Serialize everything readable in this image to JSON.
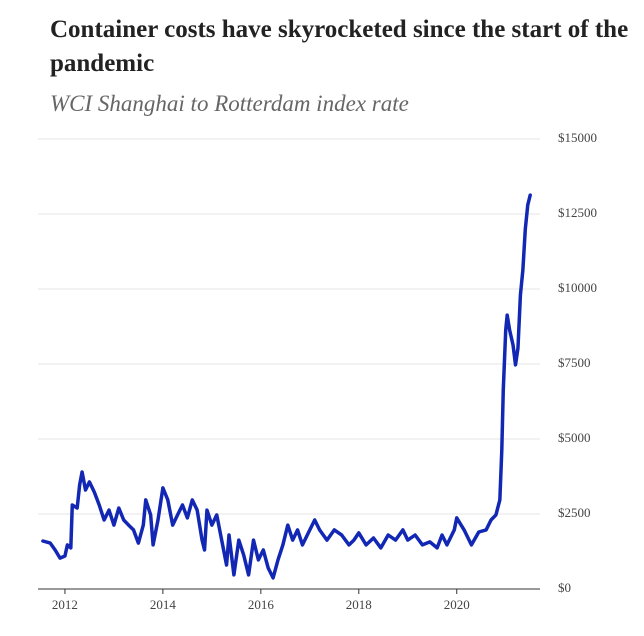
{
  "chart_data": {
    "type": "line",
    "title": "Container costs have skyrocketed since the start of the pandemic",
    "subtitle": "WCI Shanghai to Rotterdam index rate",
    "x": [
      2011.55,
      2011.7,
      2011.8,
      2011.9,
      2012.0,
      2012.05,
      2012.12,
      2012.15,
      2012.25,
      2012.3,
      2012.35,
      2012.42,
      2012.5,
      2012.6,
      2012.7,
      2012.8,
      2012.9,
      2013.0,
      2013.1,
      2013.2,
      2013.3,
      2013.4,
      2013.5,
      2013.6,
      2013.65,
      2013.75,
      2013.8,
      2013.9,
      2014.0,
      2014.1,
      2014.2,
      2014.3,
      2014.4,
      2014.5,
      2014.6,
      2014.7,
      2014.8,
      2014.85,
      2014.9,
      2015.0,
      2015.1,
      2015.2,
      2015.3,
      2015.35,
      2015.45,
      2015.55,
      2015.65,
      2015.75,
      2015.85,
      2015.95,
      2016.05,
      2016.15,
      2016.25,
      2016.35,
      2016.45,
      2016.55,
      2016.65,
      2016.75,
      2016.85,
      2017.0,
      2017.1,
      2017.2,
      2017.35,
      2017.5,
      2017.65,
      2017.8,
      2017.9,
      2018.0,
      2018.15,
      2018.3,
      2018.45,
      2018.6,
      2018.75,
      2018.9,
      2019.0,
      2019.15,
      2019.3,
      2019.45,
      2019.6,
      2019.7,
      2019.8,
      2019.95,
      2020.0,
      2020.15,
      2020.3,
      2020.45,
      2020.6,
      2020.7,
      2020.8,
      2020.88,
      2020.92,
      2020.95,
      2021.0,
      2021.03,
      2021.08,
      2021.15,
      2021.2,
      2021.25,
      2021.3,
      2021.35,
      2021.4,
      2021.45,
      2021.5
    ],
    "series": [
      {
        "name": "WCI Shanghai to Rotterdam",
        "color": "#1228b4",
        "values": [
          1600,
          1530,
          1300,
          1030,
          1100,
          1470,
          1370,
          2800,
          2700,
          3470,
          3900,
          3300,
          3570,
          3230,
          2800,
          2300,
          2630,
          2130,
          2700,
          2300,
          2130,
          1970,
          1530,
          2130,
          2970,
          2470,
          1470,
          2300,
          3370,
          2970,
          2130,
          2470,
          2800,
          2370,
          2970,
          2630,
          1630,
          1300,
          2630,
          2130,
          2470,
          1630,
          800,
          1800,
          470,
          1630,
          1130,
          470,
          1630,
          970,
          1300,
          700,
          370,
          970,
          1470,
          2130,
          1630,
          1970,
          1470,
          1970,
          2300,
          1970,
          1630,
          1970,
          1800,
          1470,
          1630,
          1870,
          1470,
          1700,
          1370,
          1800,
          1630,
          1970,
          1630,
          1800,
          1470,
          1570,
          1370,
          1800,
          1470,
          1970,
          2370,
          1970,
          1470,
          1900,
          1970,
          2300,
          2470,
          2970,
          4630,
          6630,
          8630,
          9130,
          8630,
          8130,
          7470,
          8030,
          9800,
          10630,
          12000,
          12800,
          13130
        ]
      }
    ],
    "xlim": [
      2011.45,
      2021.7
    ],
    "xticks": [
      2012,
      2014,
      2016,
      2018,
      2020
    ],
    "ylim": [
      0,
      15000
    ],
    "yticks": [
      {
        "value": 0,
        "label": "$0"
      },
      {
        "value": 2500,
        "label": "$2500"
      },
      {
        "value": 5000,
        "label": "$5000"
      },
      {
        "value": 7500,
        "label": "$7500"
      },
      {
        "value": 10000,
        "label": "$10000"
      },
      {
        "value": 12500,
        "label": "$12500"
      },
      {
        "value": 15000,
        "label": "$15000"
      }
    ],
    "grid": true
  }
}
